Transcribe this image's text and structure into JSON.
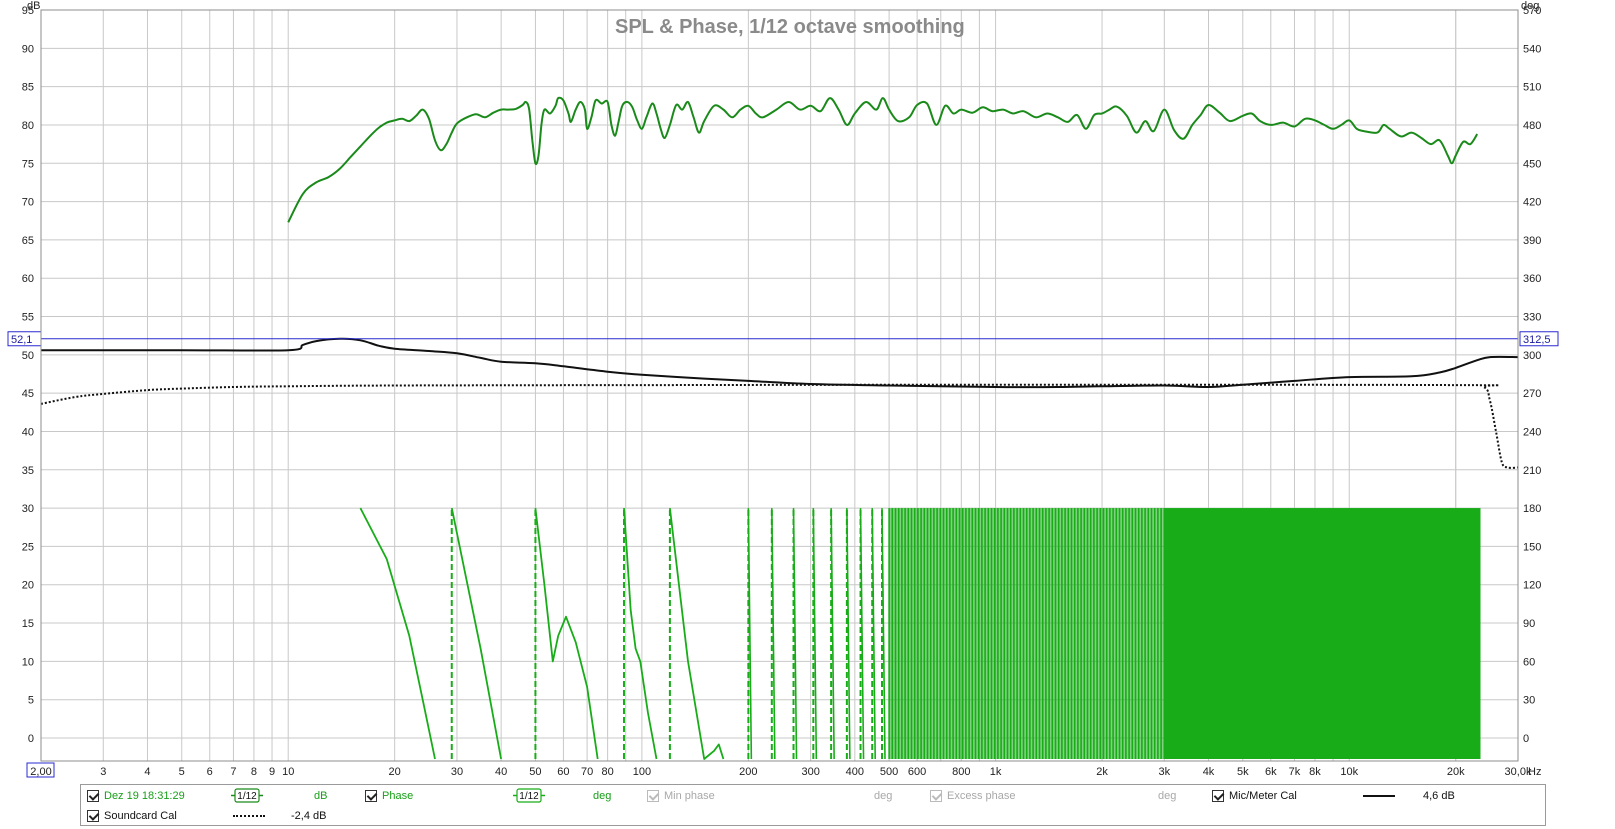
{
  "chart_data": {
    "type": "line",
    "title": "SPL & Phase, 1/12 octave smoothing",
    "x_scale": "log",
    "xlim": [
      2,
      30000
    ],
    "x_unit": "Hz",
    "x_ticks": [
      {
        "v": 2,
        "label": "2,00"
      },
      {
        "v": 3,
        "label": "3"
      },
      {
        "v": 4,
        "label": "4"
      },
      {
        "v": 5,
        "label": "5"
      },
      {
        "v": 6,
        "label": "6"
      },
      {
        "v": 7,
        "label": "7"
      },
      {
        "v": 8,
        "label": "8"
      },
      {
        "v": 9,
        "label": "9"
      },
      {
        "v": 10,
        "label": "10"
      },
      {
        "v": 20,
        "label": "20"
      },
      {
        "v": 30,
        "label": "30"
      },
      {
        "v": 40,
        "label": "40"
      },
      {
        "v": 50,
        "label": "50"
      },
      {
        "v": 60,
        "label": "60"
      },
      {
        "v": 70,
        "label": "70"
      },
      {
        "v": 80,
        "label": "80"
      },
      {
        "v": 100,
        "label": "100"
      },
      {
        "v": 200,
        "label": "200"
      },
      {
        "v": 300,
        "label": "300"
      },
      {
        "v": 400,
        "label": "400"
      },
      {
        "v": 500,
        "label": "500"
      },
      {
        "v": 600,
        "label": "600"
      },
      {
        "v": 800,
        "label": "800"
      },
      {
        "v": 1000,
        "label": "1k"
      },
      {
        "v": 2000,
        "label": "2k"
      },
      {
        "v": 3000,
        "label": "3k"
      },
      {
        "v": 4000,
        "label": "4k"
      },
      {
        "v": 5000,
        "label": "5k"
      },
      {
        "v": 6000,
        "label": "6k"
      },
      {
        "v": 7000,
        "label": "7k"
      },
      {
        "v": 8000,
        "label": "8k"
      },
      {
        "v": 10000,
        "label": "10k"
      },
      {
        "v": 20000,
        "label": "20k"
      },
      {
        "v": 30000,
        "label": "30,0k"
      }
    ],
    "y_left": {
      "unit": "dB",
      "lim": [
        -3,
        95
      ],
      "ticks": [
        0,
        5,
        10,
        15,
        20,
        25,
        30,
        35,
        40,
        45,
        50,
        55,
        60,
        65,
        70,
        75,
        80,
        85,
        90,
        95
      ]
    },
    "y_right": {
      "unit": "deg",
      "lim": [
        -18,
        570
      ],
      "ticks": [
        0,
        30,
        60,
        90,
        120,
        150,
        180,
        210,
        240,
        270,
        300,
        330,
        360,
        390,
        420,
        450,
        480,
        510,
        540,
        570
      ]
    },
    "cursor": {
      "left_label": "52,1",
      "right_label": "312,5",
      "value_db": 52.1
    },
    "grid": true,
    "series": [
      {
        "axis": "left",
        "color": "#1a8a1a",
        "style": "solid",
        "width": 2,
        "points": [
          [
            10,
            67.3
          ],
          [
            11,
            71
          ],
          [
            12,
            72.5
          ],
          [
            13,
            73.2
          ],
          [
            14,
            74.3
          ],
          [
            15,
            75.8
          ],
          [
            16,
            77.2
          ],
          [
            17,
            78.5
          ],
          [
            18,
            79.6
          ],
          [
            19,
            80.3
          ],
          [
            20,
            80.6
          ],
          [
            21,
            80.8
          ],
          [
            22,
            80.5
          ],
          [
            23,
            81.2
          ],
          [
            24,
            82
          ],
          [
            25,
            80.8
          ],
          [
            26,
            78
          ],
          [
            27,
            76.7
          ],
          [
            28,
            77.5
          ],
          [
            29,
            79
          ],
          [
            30,
            80.2
          ],
          [
            32,
            81
          ],
          [
            34,
            81.4
          ],
          [
            36,
            81
          ],
          [
            38,
            81.6
          ],
          [
            40,
            82
          ],
          [
            42,
            82
          ],
          [
            44,
            82.1
          ],
          [
            46,
            82.6
          ],
          [
            47,
            83
          ],
          [
            48,
            82
          ],
          [
            49,
            78
          ],
          [
            50,
            75
          ],
          [
            51,
            76
          ],
          [
            52,
            80
          ],
          [
            53,
            82
          ],
          [
            55,
            81.5
          ],
          [
            57,
            82.5
          ],
          [
            58,
            83.5
          ],
          [
            60,
            83.2
          ],
          [
            62,
            81.5
          ],
          [
            63,
            80.4
          ],
          [
            65,
            82
          ],
          [
            67,
            83
          ],
          [
            69,
            82
          ],
          [
            70,
            79.5
          ],
          [
            72,
            81
          ],
          [
            74,
            83.2
          ],
          [
            77,
            82.8
          ],
          [
            80,
            83
          ],
          [
            82,
            80
          ],
          [
            84,
            78.6
          ],
          [
            86,
            80.5
          ],
          [
            88,
            82.5
          ],
          [
            91,
            83
          ],
          [
            94,
            82.3
          ],
          [
            97,
            80.6
          ],
          [
            100,
            79.5
          ],
          [
            103,
            81
          ],
          [
            107,
            82.8
          ],
          [
            110,
            81.5
          ],
          [
            113,
            79.5
          ],
          [
            116,
            78.3
          ],
          [
            120,
            80
          ],
          [
            125,
            82.6
          ],
          [
            130,
            82
          ],
          [
            135,
            83
          ],
          [
            140,
            81
          ],
          [
            145,
            79
          ],
          [
            150,
            80.5
          ],
          [
            160,
            82.5
          ],
          [
            170,
            82
          ],
          [
            180,
            81
          ],
          [
            190,
            82
          ],
          [
            200,
            82.5
          ],
          [
            210,
            81.5
          ],
          [
            220,
            81
          ],
          [
            240,
            82
          ],
          [
            260,
            83
          ],
          [
            280,
            82
          ],
          [
            300,
            82.5
          ],
          [
            320,
            81.8
          ],
          [
            340,
            83.5
          ],
          [
            360,
            82
          ],
          [
            380,
            80
          ],
          [
            400,
            81.5
          ],
          [
            430,
            83
          ],
          [
            460,
            82
          ],
          [
            480,
            83.5
          ],
          [
            500,
            82
          ],
          [
            530,
            80.5
          ],
          [
            570,
            81
          ],
          [
            600,
            82.6
          ],
          [
            640,
            82.8
          ],
          [
            680,
            80
          ],
          [
            720,
            82.5
          ],
          [
            760,
            81.5
          ],
          [
            800,
            82
          ],
          [
            860,
            81.6
          ],
          [
            920,
            82.3
          ],
          [
            980,
            81.8
          ],
          [
            1050,
            82
          ],
          [
            1120,
            81.5
          ],
          [
            1200,
            81.8
          ],
          [
            1300,
            81
          ],
          [
            1400,
            81.5
          ],
          [
            1500,
            81
          ],
          [
            1600,
            80.4
          ],
          [
            1700,
            81.3
          ],
          [
            1800,
            79.5
          ],
          [
            1900,
            81.3
          ],
          [
            2000,
            81.5
          ],
          [
            2100,
            82
          ],
          [
            2200,
            82.4
          ],
          [
            2350,
            81.2
          ],
          [
            2500,
            79
          ],
          [
            2650,
            80.5
          ],
          [
            2800,
            79.2
          ],
          [
            3000,
            82
          ],
          [
            3200,
            79.3
          ],
          [
            3400,
            78.2
          ],
          [
            3600,
            80
          ],
          [
            3800,
            81.3
          ],
          [
            4000,
            82.6
          ],
          [
            4300,
            81.6
          ],
          [
            4600,
            80.5
          ],
          [
            5000,
            81.2
          ],
          [
            5300,
            81.5
          ],
          [
            5600,
            80.5
          ],
          [
            6000,
            80
          ],
          [
            6500,
            80.3
          ],
          [
            7000,
            79.8
          ],
          [
            7500,
            80.8
          ],
          [
            8000,
            80.6
          ],
          [
            8500,
            80
          ],
          [
            9000,
            79.5
          ],
          [
            9500,
            80
          ],
          [
            10000,
            80.6
          ],
          [
            10500,
            79.5
          ],
          [
            11000,
            79.2
          ],
          [
            12000,
            79
          ],
          [
            12500,
            80
          ],
          [
            13000,
            79.5
          ],
          [
            14000,
            78.5
          ],
          [
            15000,
            79
          ],
          [
            16000,
            78.3
          ],
          [
            17000,
            77.5
          ],
          [
            18000,
            78
          ],
          [
            19000,
            76
          ],
          [
            19500,
            75
          ],
          [
            20000,
            76
          ],
          [
            21000,
            77.8
          ],
          [
            22000,
            77.5
          ],
          [
            23000,
            78.8
          ]
        ]
      },
      {
        "axis": "left",
        "color": "#111111",
        "style": "solid",
        "width": 2,
        "points": [
          [
            2,
            50.6
          ],
          [
            5,
            50.6
          ],
          [
            10,
            50.6
          ],
          [
            11,
            51.3
          ],
          [
            12,
            51.8
          ],
          [
            14,
            52.1
          ],
          [
            16,
            51.9
          ],
          [
            18,
            51.2
          ],
          [
            20,
            50.8
          ],
          [
            25,
            50.5
          ],
          [
            30,
            50.2
          ],
          [
            35,
            49.6
          ],
          [
            40,
            49.1
          ],
          [
            50,
            48.9
          ],
          [
            60,
            48.5
          ],
          [
            80,
            47.8
          ],
          [
            100,
            47.4
          ],
          [
            150,
            46.9
          ],
          [
            200,
            46.6
          ],
          [
            300,
            46.2
          ],
          [
            500,
            46
          ],
          [
            1000,
            45.8
          ],
          [
            1500,
            45.8
          ],
          [
            2000,
            45.9
          ],
          [
            3000,
            46
          ],
          [
            4000,
            45.8
          ],
          [
            5000,
            46.1
          ],
          [
            7000,
            46.6
          ],
          [
            10000,
            47.1
          ],
          [
            15000,
            47.2
          ],
          [
            18000,
            47.7
          ],
          [
            20000,
            48.3
          ],
          [
            23000,
            49.3
          ],
          [
            25000,
            49.7
          ],
          [
            30000,
            49.7
          ]
        ]
      },
      {
        "axis": "left",
        "color": "#111111",
        "style": "dotted",
        "width": 2,
        "points": [
          [
            2,
            43.6
          ],
          [
            2.5,
            44.5
          ],
          [
            3,
            44.9
          ],
          [
            4,
            45.4
          ],
          [
            5,
            45.6
          ],
          [
            7,
            45.8
          ],
          [
            10,
            45.9
          ],
          [
            20,
            46
          ],
          [
            100,
            46.05
          ],
          [
            1000,
            46.1
          ],
          [
            20000,
            46.05
          ],
          [
            24000,
            45.8
          ],
          [
            25000,
            44
          ],
          [
            26000,
            40
          ],
          [
            27000,
            36
          ],
          [
            28000,
            35.3
          ],
          [
            30000,
            35.3
          ]
        ]
      },
      {
        "axis": "right",
        "color": "#18ad18",
        "style": "wrapped-phase",
        "width": 2,
        "fill_dense_from": 500,
        "points": [
          [
            16,
            180
          ],
          [
            19,
            140
          ],
          [
            22,
            80
          ],
          [
            24,
            30
          ],
          [
            26,
            -20
          ],
          [
            29,
            180
          ],
          [
            35,
            70
          ],
          [
            40,
            -20
          ],
          [
            50,
            180
          ],
          [
            53,
            120
          ],
          [
            56,
            60
          ],
          [
            58,
            80
          ],
          [
            61,
            95
          ],
          [
            65,
            75
          ],
          [
            70,
            40
          ],
          [
            75,
            -20
          ],
          [
            89,
            180
          ],
          [
            93,
            100
          ],
          [
            96,
            70
          ],
          [
            99,
            60
          ],
          [
            104,
            20
          ],
          [
            110,
            -20
          ],
          [
            120,
            180
          ],
          [
            135,
            60
          ],
          [
            150,
            -20
          ],
          [
            160,
            -10
          ],
          [
            165,
            -5
          ],
          [
            170,
            -20
          ]
        ]
      }
    ]
  },
  "legend": {
    "row1": [
      {
        "checked": true,
        "label": "Dez 19 18:31:29",
        "color": "green"
      },
      {
        "smoothing": "1/12",
        "unit": "dB"
      },
      {
        "checked": true,
        "label": "Phase",
        "color": "green"
      },
      {
        "smoothing": "1/12",
        "unit": "deg"
      },
      {
        "checked": true,
        "disabled": true,
        "label": "Min phase",
        "unit": "deg"
      },
      {
        "checked": true,
        "disabled": true,
        "label": "Excess phase",
        "unit": "deg"
      },
      {
        "checked": true,
        "label": "Mic/Meter Cal",
        "value": "4,6 dB"
      }
    ],
    "row2": [
      {
        "checked": true,
        "label": "Soundcard Cal",
        "value": "-2,4 dB"
      }
    ]
  }
}
